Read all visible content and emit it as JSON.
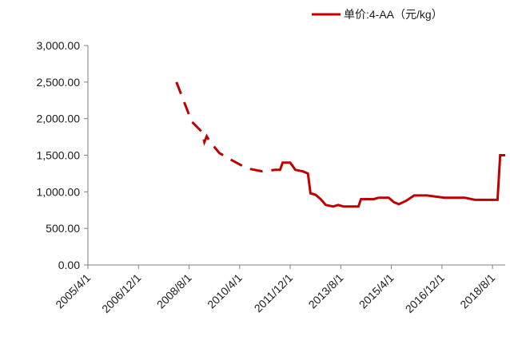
{
  "chart_data": {
    "type": "line",
    "title": "",
    "xlabel": "",
    "ylabel": "",
    "ylim": [
      0,
      3000
    ],
    "yticks": [
      "0.00",
      "500.00",
      "1,000.00",
      "1,500.00",
      "2,000.00",
      "2,500.00",
      "3,000.00"
    ],
    "xticks": [
      "2005/4/1",
      "2006/12/1",
      "2008/8/1",
      "2010/4/1",
      "2011/12/1",
      "2013/8/1",
      "2015/4/1",
      "2016/12/1",
      "2018/8/1"
    ],
    "xlim": [
      "2005/4/1",
      "2019/1/1"
    ],
    "grid": false,
    "legend": "top-right",
    "series": [
      {
        "name": "单价:4-AA（元/kg）",
        "color": "#c00000",
        "segments": [
          {
            "style": "dashed",
            "points": [
              [
                "2008/3/1",
                2500
              ],
              [
                "2008/9/1",
                1960
              ],
              [
                "2009/1/1",
                1820
              ],
              [
                "2009/2/1",
                1680
              ],
              [
                "2009/3/1",
                1760
              ],
              [
                "2009/4/1",
                1700
              ],
              [
                "2009/8/1",
                1530
              ],
              [
                "2010/1/1",
                1430
              ],
              [
                "2010/7/1",
                1320
              ],
              [
                "2011/1/1",
                1280
              ],
              [
                "2011/6/1",
                1300
              ]
            ]
          },
          {
            "style": "solid",
            "points": [
              [
                "2011/6/1",
                1300
              ],
              [
                "2011/8/1",
                1300
              ],
              [
                "2011/9/1",
                1400
              ],
              [
                "2011/12/1",
                1400
              ],
              [
                "2012/2/1",
                1300
              ],
              [
                "2012/5/1",
                1280
              ],
              [
                "2012/7/1",
                1250
              ],
              [
                "2012/8/1",
                980
              ],
              [
                "2012/10/1",
                960
              ],
              [
                "2012/12/1",
                900
              ],
              [
                "2013/2/1",
                820
              ],
              [
                "2013/5/1",
                800
              ],
              [
                "2013/7/1",
                820
              ],
              [
                "2013/9/1",
                800
              ],
              [
                "2013/12/1",
                800
              ],
              [
                "2014/3/1",
                800
              ],
              [
                "2014/4/1",
                900
              ],
              [
                "2014/9/1",
                900
              ],
              [
                "2014/11/1",
                920
              ],
              [
                "2015/3/1",
                920
              ],
              [
                "2015/5/1",
                860
              ],
              [
                "2015/7/1",
                830
              ],
              [
                "2015/10/1",
                880
              ],
              [
                "2016/1/1",
                950
              ],
              [
                "2016/6/1",
                950
              ],
              [
                "2017/1/1",
                920
              ],
              [
                "2017/9/1",
                920
              ],
              [
                "2018/1/1",
                890
              ],
              [
                "2018/6/1",
                890
              ],
              [
                "2018/10/1",
                890
              ],
              [
                "2018/11/1",
                1500
              ],
              [
                "2019/1/1",
                1500
              ]
            ]
          }
        ]
      }
    ]
  }
}
